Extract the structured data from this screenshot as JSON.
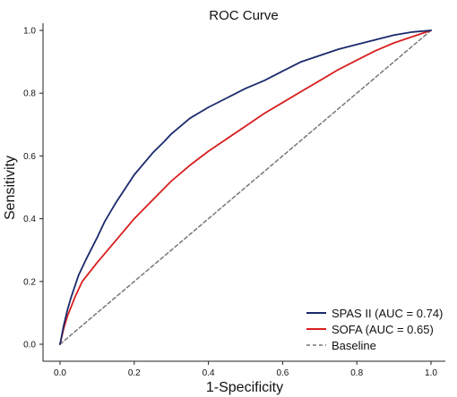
{
  "chart_data": {
    "type": "line",
    "title": "ROC Curve",
    "xlabel": "1-Specificity",
    "ylabel": "Sensitivity",
    "xlim": [
      0,
      1
    ],
    "ylim": [
      0,
      1
    ],
    "xticks": [
      "0.0",
      "0.2",
      "0.4",
      "0.6",
      "0.8",
      "1.0"
    ],
    "yticks": [
      "0.0",
      "0.2",
      "0.4",
      "0.6",
      "0.8",
      "1.0"
    ],
    "legend_position": "bottom-right",
    "grid": false,
    "series": [
      {
        "name": "SPAS II (AUC = 0.74)",
        "color": "#1a2a6c",
        "style": "solid",
        "x": [
          0,
          0.01,
          0.02,
          0.03,
          0.05,
          0.07,
          0.1,
          0.12,
          0.15,
          0.2,
          0.25,
          0.28,
          0.3,
          0.35,
          0.4,
          0.45,
          0.5,
          0.55,
          0.6,
          0.65,
          0.7,
          0.75,
          0.8,
          0.85,
          0.9,
          0.95,
          1.0
        ],
        "y": [
          0,
          0.06,
          0.11,
          0.15,
          0.22,
          0.27,
          0.34,
          0.39,
          0.45,
          0.54,
          0.61,
          0.645,
          0.67,
          0.72,
          0.755,
          0.785,
          0.815,
          0.84,
          0.87,
          0.9,
          0.92,
          0.94,
          0.955,
          0.97,
          0.985,
          0.995,
          1.0
        ]
      },
      {
        "name": "SOFA (AUC = 0.65)",
        "color": "#d81e1e",
        "style": "solid",
        "x": [
          0,
          0.01,
          0.02,
          0.04,
          0.06,
          0.1,
          0.15,
          0.2,
          0.25,
          0.3,
          0.35,
          0.4,
          0.45,
          0.5,
          0.55,
          0.6,
          0.65,
          0.7,
          0.75,
          0.8,
          0.85,
          0.9,
          0.95,
          1.0
        ],
        "y": [
          0,
          0.05,
          0.09,
          0.15,
          0.2,
          0.26,
          0.33,
          0.4,
          0.46,
          0.52,
          0.57,
          0.615,
          0.655,
          0.695,
          0.735,
          0.77,
          0.805,
          0.84,
          0.875,
          0.905,
          0.935,
          0.96,
          0.98,
          1.0
        ]
      },
      {
        "name": "Baseline",
        "color": "#777777",
        "style": "dashed",
        "x": [
          0,
          1
        ],
        "y": [
          0,
          1
        ]
      }
    ]
  }
}
